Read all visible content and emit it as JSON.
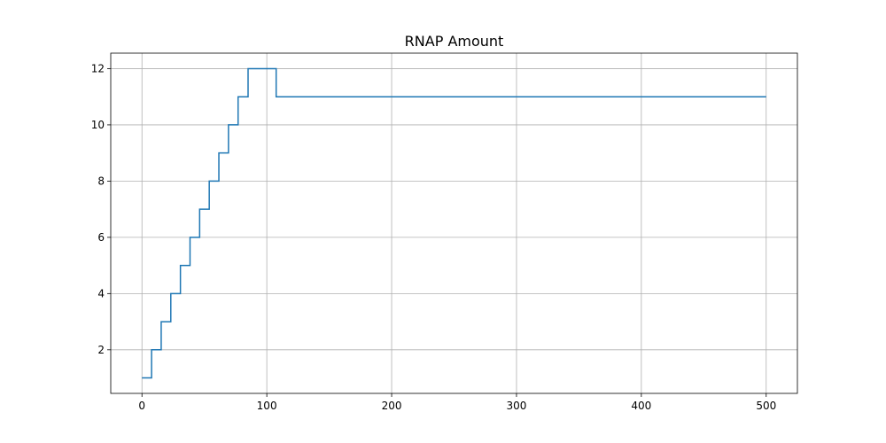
{
  "chart_data": {
    "type": "line",
    "title": "RNAP Amount",
    "xlabel": "",
    "ylabel": "",
    "xlim": [
      -25,
      525
    ],
    "ylim": [
      0.45,
      12.55
    ],
    "x_ticks": [
      0,
      100,
      200,
      300,
      400,
      500
    ],
    "y_ticks": [
      2,
      4,
      6,
      8,
      10,
      12
    ],
    "grid": true,
    "step": "post",
    "series": [
      {
        "color": "#1f77b4",
        "x": [
          0,
          7.7,
          15.4,
          23.1,
          30.8,
          38.5,
          46.2,
          53.9,
          61.6,
          69.3,
          77,
          85,
          107.5,
          500
        ],
        "y": [
          1,
          2,
          3,
          4,
          5,
          6,
          7,
          8,
          9,
          10,
          11,
          12,
          11,
          11
        ]
      }
    ]
  }
}
